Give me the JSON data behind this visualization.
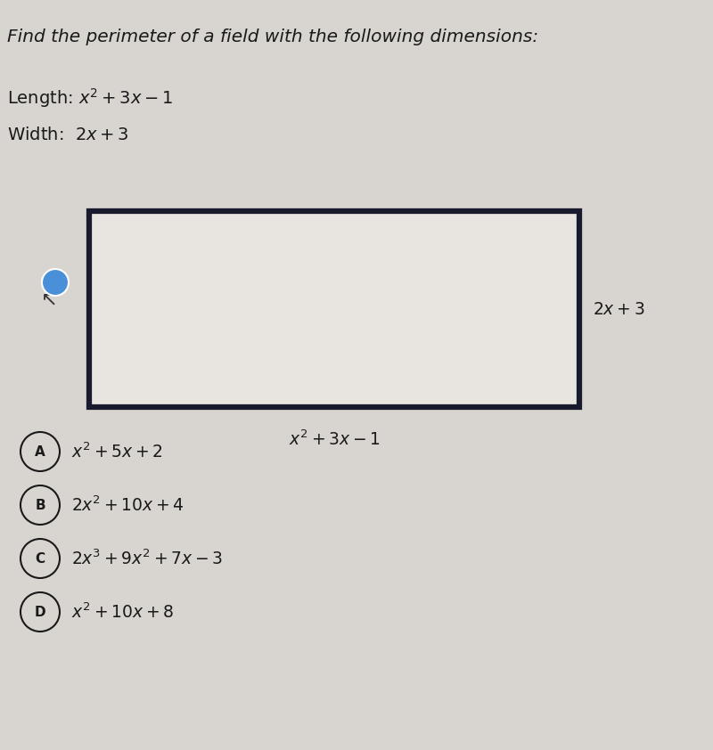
{
  "title": "Find the perimeter of a field with the following dimensions:",
  "length_label": "Length: $x^2 + 3x - 1$",
  "width_label": "Width:  $2x + 3$",
  "rect_bottom_label": "$x^2 + 3x - 1$",
  "rect_right_label": "$2x + 3$",
  "choices": [
    {
      "letter": "A",
      "text": "$x^2 + 5x + 2$"
    },
    {
      "letter": "B",
      "text": "$2x^2 + 10x + 4$"
    },
    {
      "letter": "C",
      "text": "$2x^3 + 9x^2 + 7x - 3$"
    },
    {
      "letter": "D",
      "text": "$x^2 + 10x + 8$"
    }
  ],
  "bg_color": "#d8d4d0",
  "rect_fill": "#e8e4e0",
  "rect_edge": "#1a1a2e",
  "text_color": "#1a1a1a",
  "circle_fill": "#4a90d9",
  "circle_edge": "#4a90d9"
}
